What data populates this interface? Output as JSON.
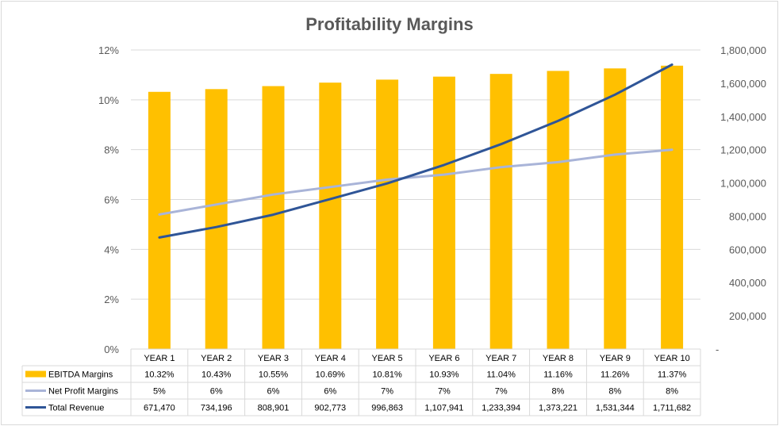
{
  "chart_data": {
    "type": "bar",
    "title": "Profitability Margins",
    "categories": [
      "YEAR 1",
      "YEAR 2",
      "YEAR 3",
      "YEAR 4",
      "YEAR 5",
      "YEAR 6",
      "YEAR 7",
      "YEAR 8",
      "YEAR 9",
      "YEAR 10"
    ],
    "series": [
      {
        "name": "EBITDA Margins",
        "type": "bar",
        "axis": "left",
        "color": "#FFC000",
        "values": [
          10.32,
          10.43,
          10.55,
          10.69,
          10.81,
          10.93,
          11.04,
          11.16,
          11.26,
          11.37
        ],
        "labels": [
          "10.32%",
          "10.43%",
          "10.55%",
          "10.69%",
          "10.81%",
          "10.93%",
          "11.04%",
          "11.16%",
          "11.26%",
          "11.37%"
        ]
      },
      {
        "name": "Net Profit Margins",
        "type": "line",
        "axis": "left",
        "color": "#A9B4D8",
        "values": [
          5.4,
          5.8,
          6.2,
          6.5,
          6.8,
          7.0,
          7.3,
          7.5,
          7.8,
          8.0
        ],
        "labels": [
          "5%",
          "6%",
          "6%",
          "6%",
          "7%",
          "7%",
          "7%",
          "8%",
          "8%",
          "8%"
        ]
      },
      {
        "name": "Total Revenue",
        "type": "line",
        "axis": "right",
        "color": "#2F5597",
        "values": [
          671470,
          734196,
          808901,
          902773,
          996863,
          1107941,
          1233394,
          1373221,
          1531344,
          1711682
        ],
        "labels": [
          "671,470",
          "734,196",
          "808,901",
          "902,773",
          "996,863",
          "1,107,941",
          "1,233,394",
          "1,373,221",
          "1,531,344",
          "1,711,682"
        ]
      }
    ],
    "y_left": {
      "min": 0,
      "max": 12,
      "ticks": [
        0,
        2,
        4,
        6,
        8,
        10,
        12
      ],
      "tick_labels": [
        "0%",
        "2%",
        "4%",
        "6%",
        "8%",
        "10%",
        "12%"
      ]
    },
    "y_right": {
      "min": 0,
      "max": 1800000,
      "ticks": [
        0,
        200000,
        400000,
        600000,
        800000,
        1000000,
        1200000,
        1400000,
        1600000,
        1800000
      ],
      "tick_labels": [
        "-",
        "200,000",
        "400,000",
        "600,000",
        "800,000",
        "1,000,000",
        "1,200,000",
        "1,400,000",
        "1,600,000",
        "1,800,000"
      ]
    },
    "grid": true,
    "legend": "data-table"
  },
  "colors": {
    "gridline": "#D9D9D9",
    "text": "#595959"
  }
}
